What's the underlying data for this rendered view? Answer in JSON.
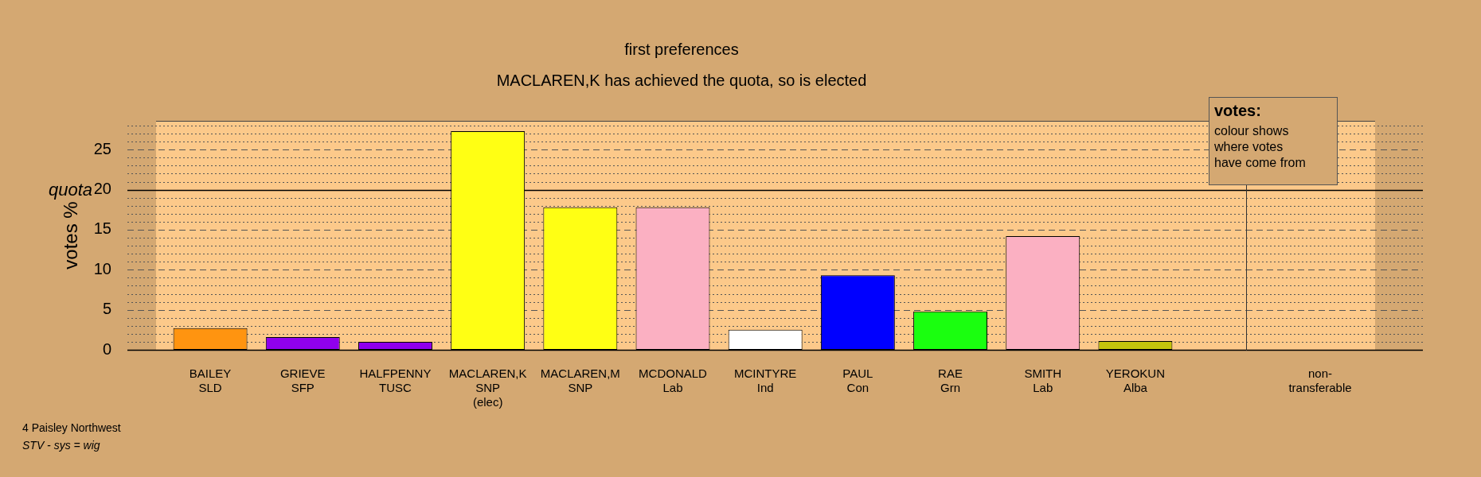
{
  "chart_data": [
    {
      "type": "bar",
      "title": "first preferences",
      "subtitle": "MACLAREN,K has achieved the quota, so is elected",
      "ylabel": "votes %",
      "categories": [
        "BAILEY\nSLD",
        "GRIEVE\nSFP",
        "HALFPENNY\nTUSC",
        "MACLAREN,K\nSNP\n(elec)",
        "MACLAREN,M\nSNP",
        "MCDONALD\nLab",
        "MCINTYRE\nInd",
        "PAUL\nCon",
        "RAE\nGrn",
        "SMITH\nLab",
        "YEROKUN\nAlba"
      ],
      "values": [
        2.7,
        1.6,
        1.0,
        27.3,
        17.8,
        17.8,
        2.5,
        9.3,
        4.8,
        14.2,
        1.1
      ],
      "colors": [
        "#ff9410",
        "#9000ee",
        "#9000ee",
        "#ffff14",
        "#ffff14",
        "#fbb0c2",
        "#ffffff",
        "#0000ff",
        "#1aff0f",
        "#fbb0c2",
        "#c4c40c"
      ],
      "ylim": [
        0,
        28.6
      ],
      "yticks": [
        0,
        {
          "value": 1,
          "label": null
        },
        {
          "value": 2,
          "label": null
        },
        {
          "value": 3,
          "label": null
        },
        {
          "value": 4,
          "label": null
        },
        5,
        {
          "value": 6,
          "label": null
        },
        {
          "value": 7,
          "label": null
        },
        {
          "value": 8,
          "label": null
        },
        {
          "value": 9,
          "label": null
        },
        10,
        {
          "value": 11,
          "label": null
        },
        {
          "value": 12,
          "label": null
        },
        {
          "value": 13,
          "label": null
        },
        {
          "value": 14,
          "label": null
        },
        15,
        {
          "value": 16,
          "label": null
        },
        {
          "value": 17,
          "label": null
        },
        {
          "value": 18,
          "label": null
        },
        {
          "value": 19,
          "label": null
        },
        20,
        {
          "value": 21,
          "label": null
        },
        {
          "value": 22,
          "label": null
        },
        {
          "value": 23,
          "label": null
        },
        {
          "value": 24,
          "label": null
        },
        25,
        {
          "value": 26,
          "label": null
        },
        {
          "value": 27,
          "label": null
        },
        {
          "value": 28,
          "label": null
        }
      ],
      "grid": "y",
      "ref_lines": [
        {
          "axis": "y",
          "value": 20,
          "label": "quota",
          "color": "#000000"
        }
      ],
      "annotations": [
        "4 Paisley Northwest",
        "STV - sys = wig",
        "votes:",
        "colour shows where votes have come from"
      ]
    },
    {
      "type": "bar",
      "categories": [
        "non-\ntransferable"
      ],
      "values": [
        0
      ],
      "colors": [
        "#000000"
      ],
      "ylim": [
        0,
        28.6
      ],
      "yticks": [
        0,
        {
          "value": 1,
          "label": null
        },
        {
          "value": 2,
          "label": null
        },
        {
          "value": 3,
          "label": null
        },
        {
          "value": 4,
          "label": null
        },
        5,
        {
          "value": 6,
          "label": null
        },
        {
          "value": 7,
          "label": null
        },
        {
          "value": 8,
          "label": null
        },
        {
          "value": 9,
          "label": null
        },
        10,
        {
          "value": 11,
          "label": null
        },
        {
          "value": 12,
          "label": null
        },
        {
          "value": 13,
          "label": null
        },
        {
          "value": 14,
          "label": null
        },
        15,
        {
          "value": 16,
          "label": null
        },
        {
          "value": 17,
          "label": null
        },
        {
          "value": 18,
          "label": null
        },
        {
          "value": 19,
          "label": null
        },
        20,
        {
          "value": 21,
          "label": null
        },
        {
          "value": 22,
          "label": null
        },
        {
          "value": 23,
          "label": null
        },
        {
          "value": 24,
          "label": null
        },
        25,
        {
          "value": 26,
          "label": null
        },
        {
          "value": 27,
          "label": null
        },
        {
          "value": 28,
          "label": null
        }
      ],
      "grid": "y",
      "tick_labels": "x",
      "ref_lines": [
        {
          "axis": "y",
          "value": 20,
          "color": "#000000"
        }
      ]
    }
  ]
}
